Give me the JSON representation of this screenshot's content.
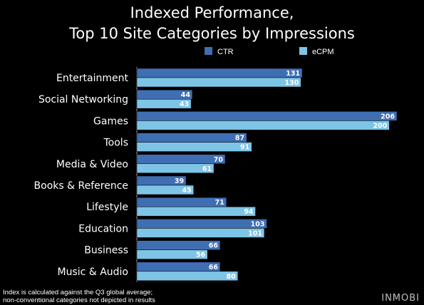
{
  "title_line1": "Indexed Performance,",
  "title_line2": "Top 10 Site Categories by Impressions",
  "footnote_line1": "Index is calculated against the  Q3 global average;",
  "footnote_line2": "non-conventional categories not depicted in results",
  "brand": "INMOBI",
  "colors": {
    "background": "#000000",
    "ctr": "#3f6eb3",
    "ecpm": "#7ec4e6",
    "text": "#ffffff"
  },
  "chart_data": {
    "type": "bar",
    "orientation": "horizontal",
    "title": "Indexed Performance, Top 10 Site Categories by Impressions",
    "categories": [
      "Entertainment",
      "Social Networking",
      "Games",
      "Tools",
      "Media & Video",
      "Books & Reference",
      "Lifestyle",
      "Education",
      "Business",
      "Music & Audio"
    ],
    "series": [
      {
        "name": "CTR",
        "color": "#3f6eb3",
        "values": [
          131,
          44,
          206,
          87,
          70,
          39,
          71,
          103,
          66,
          66
        ]
      },
      {
        "name": "eCPM",
        "color": "#7ec4e6",
        "values": [
          130,
          43,
          200,
          91,
          61,
          45,
          94,
          101,
          56,
          80
        ]
      }
    ],
    "legend_position": "top-right",
    "data_labels": true,
    "grid": false
  }
}
